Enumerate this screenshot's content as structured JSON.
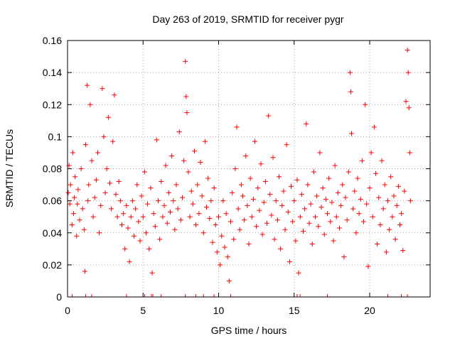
{
  "chart_data": {
    "type": "scatter",
    "title": "Day 263 of 2019, SRMTID for receiver pygr",
    "xlabel": "GPS time / hours",
    "ylabel": "SRMTID / TECUs",
    "xlim": [
      0,
      24
    ],
    "ylim": [
      0,
      0.16
    ],
    "xticks": [
      0,
      5,
      10,
      15,
      20
    ],
    "xtick_labels": [
      "0",
      "5",
      "10",
      "15",
      "20"
    ],
    "yticks": [
      0,
      0.02,
      0.04,
      0.06,
      0.08,
      0.1,
      0.12,
      0.14,
      0.16
    ],
    "ytick_labels": [
      "0",
      "0.02",
      "0.04",
      "0.06",
      "0.08",
      "0.1",
      "0.12",
      "0.14",
      "0.16"
    ],
    "grid": true,
    "marker": "plus",
    "color": "#ff0000",
    "series": [
      {
        "name": "SRMTID",
        "points": [
          [
            0.05,
            0.065
          ],
          [
            0.1,
            0.082
          ],
          [
            0.15,
            0.058
          ],
          [
            0.2,
            0.07
          ],
          [
            0.3,
            0.045
          ],
          [
            0.35,
            0.09
          ],
          [
            0.4,
            0.052
          ],
          [
            0.45,
            0.062
          ],
          [
            0.5,
            0.075
          ],
          [
            0.6,
            0.038
          ],
          [
            0.65,
            0.058
          ],
          [
            0.7,
            0.067
          ],
          [
            0.8,
            0.048
          ],
          [
            0.9,
            0.08
          ],
          [
            1.0,
            0.055
          ],
          [
            1.1,
            0.042
          ],
          [
            1.15,
            0.016
          ],
          [
            1.2,
            0.095
          ],
          [
            1.3,
            0.132
          ],
          [
            1.35,
            0.06
          ],
          [
            1.4,
            0.07
          ],
          [
            1.5,
            0.12
          ],
          [
            1.6,
            0.085
          ],
          [
            1.7,
            0.05
          ],
          [
            1.8,
            0.062
          ],
          [
            1.9,
            0.073
          ],
          [
            2.0,
            0.09
          ],
          [
            2.1,
            0.04
          ],
          [
            2.2,
            0.057
          ],
          [
            2.3,
            0.13
          ],
          [
            2.4,
            0.1
          ],
          [
            2.5,
            0.065
          ],
          [
            2.6,
            0.08
          ],
          [
            2.7,
            0.112
          ],
          [
            2.8,
            0.071
          ],
          [
            2.9,
            0.055
          ],
          [
            3.0,
            0.097
          ],
          [
            3.1,
            0.126
          ],
          [
            3.2,
            0.064
          ],
          [
            3.3,
            0.05
          ],
          [
            3.4,
            0.072
          ],
          [
            3.5,
            0.06
          ],
          [
            3.6,
            0.045
          ],
          [
            3.7,
            0.052
          ],
          [
            3.8,
            0.03
          ],
          [
            3.9,
            0.057
          ],
          [
            4.0,
            0.043
          ],
          [
            4.1,
            0.022
          ],
          [
            4.2,
            0.05
          ],
          [
            4.3,
            0.06
          ],
          [
            4.4,
            0.038
          ],
          [
            4.5,
            0.055
          ],
          [
            4.6,
            0.07
          ],
          [
            4.7,
            0.047
          ],
          [
            4.8,
            0.035
          ],
          [
            4.9,
            0.063
          ],
          [
            5.0,
            0.05
          ],
          [
            5.1,
            0.078
          ],
          [
            5.2,
            0.04
          ],
          [
            5.3,
            0.058
          ],
          [
            5.4,
            0.03
          ],
          [
            5.5,
            0.068
          ],
          [
            5.6,
            0.015
          ],
          [
            5.7,
            0.052
          ],
          [
            5.8,
            0.044
          ],
          [
            5.9,
            0.098
          ],
          [
            6.0,
            0.06
          ],
          [
            6.1,
            0.036
          ],
          [
            6.2,
            0.072
          ],
          [
            6.3,
            0.05
          ],
          [
            6.4,
            0.057
          ],
          [
            6.5,
            0.082
          ],
          [
            6.6,
            0.046
          ],
          [
            6.7,
            0.065
          ],
          [
            6.8,
            0.053
          ],
          [
            6.9,
            0.088
          ],
          [
            7.0,
            0.06
          ],
          [
            7.1,
            0.042
          ],
          [
            7.2,
            0.07
          ],
          [
            7.3,
            0.055
          ],
          [
            7.4,
            0.103
          ],
          [
            7.5,
            0.048
          ],
          [
            7.6,
            0.062
          ],
          [
            7.7,
            0.085
          ],
          [
            7.8,
            0.147
          ],
          [
            7.85,
            0.125
          ],
          [
            7.9,
            0.115
          ],
          [
            8.0,
            0.078
          ],
          [
            8.1,
            0.05
          ],
          [
            8.2,
            0.066
          ],
          [
            8.3,
            0.058
          ],
          [
            8.4,
            0.091
          ],
          [
            8.5,
            0.045
          ],
          [
            8.6,
            0.07
          ],
          [
            8.7,
            0.052
          ],
          [
            8.8,
            0.084
          ],
          [
            8.9,
            0.063
          ],
          [
            9.0,
            0.04
          ],
          [
            9.1,
            0.097
          ],
          [
            9.2,
            0.056
          ],
          [
            9.3,
            0.074
          ],
          [
            9.4,
            0.049
          ],
          [
            9.5,
            0.06
          ],
          [
            9.6,
            0.034
          ],
          [
            9.7,
            0.068
          ],
          [
            9.8,
            0.045
          ],
          [
            9.9,
            0.028
          ],
          [
            10.0,
            0.05
          ],
          [
            10.1,
            0.02
          ],
          [
            10.2,
            0.038
          ],
          [
            10.3,
            0.06
          ],
          [
            10.4,
            0.031
          ],
          [
            10.5,
            0.052
          ],
          [
            10.6,
            0.025
          ],
          [
            10.7,
            0.01
          ],
          [
            10.8,
            0.047
          ],
          [
            10.9,
            0.065
          ],
          [
            11.0,
            0.036
          ],
          [
            11.1,
            0.08
          ],
          [
            11.2,
            0.106
          ],
          [
            11.3,
            0.055
          ],
          [
            11.4,
            0.042
          ],
          [
            11.5,
            0.07
          ],
          [
            11.6,
            0.063
          ],
          [
            11.7,
            0.048
          ],
          [
            11.8,
            0.088
          ],
          [
            11.9,
            0.057
          ],
          [
            12.0,
            0.033
          ],
          [
            12.1,
            0.074
          ],
          [
            12.2,
            0.05
          ],
          [
            12.3,
            0.061
          ],
          [
            12.4,
            0.097
          ],
          [
            12.5,
            0.044
          ],
          [
            12.6,
            0.068
          ],
          [
            12.7,
            0.054
          ],
          [
            12.8,
            0.083
          ],
          [
            12.9,
            0.039
          ],
          [
            13.0,
            0.059
          ],
          [
            13.1,
            0.072
          ],
          [
            13.2,
            0.046
          ],
          [
            13.3,
            0.113
          ],
          [
            13.4,
            0.064
          ],
          [
            13.5,
            0.051
          ],
          [
            13.6,
            0.087
          ],
          [
            13.7,
            0.036
          ],
          [
            13.8,
            0.06
          ],
          [
            13.9,
            0.048
          ],
          [
            14.0,
            0.075
          ],
          [
            14.1,
            0.03
          ],
          [
            14.2,
            0.057
          ],
          [
            14.3,
            0.066
          ],
          [
            14.4,
            0.042
          ],
          [
            14.5,
            0.095
          ],
          [
            14.6,
            0.053
          ],
          [
            14.7,
            0.022
          ],
          [
            14.8,
            0.069
          ],
          [
            14.9,
            0.047
          ],
          [
            15.0,
            0.06
          ],
          [
            15.1,
            0.035
          ],
          [
            15.2,
            0.073
          ],
          [
            15.3,
            0.015
          ],
          [
            15.4,
            0.05
          ],
          [
            15.5,
            0.064
          ],
          [
            15.6,
            0.041
          ],
          [
            15.7,
            0.055
          ],
          [
            15.8,
            0.108
          ],
          [
            15.9,
            0.07
          ],
          [
            16.0,
            0.046
          ],
          [
            16.1,
            0.058
          ],
          [
            16.2,
            0.033
          ],
          [
            16.3,
            0.078
          ],
          [
            16.4,
            0.05
          ],
          [
            16.5,
            0.063
          ],
          [
            16.6,
            0.044
          ],
          [
            16.7,
            0.09
          ],
          [
            16.8,
            0.056
          ],
          [
            16.9,
            0.068
          ],
          [
            17.0,
            0.039
          ],
          [
            17.1,
            0.061
          ],
          [
            17.2,
            0.052
          ],
          [
            17.3,
            0.074
          ],
          [
            17.4,
            0.047
          ],
          [
            17.5,
            0.059
          ],
          [
            17.6,
            0.035
          ],
          [
            17.7,
            0.082
          ],
          [
            17.8,
            0.05
          ],
          [
            17.9,
            0.065
          ],
          [
            18.0,
            0.043
          ],
          [
            18.1,
            0.057
          ],
          [
            18.2,
            0.07
          ],
          [
            18.3,
            0.025
          ],
          [
            18.4,
            0.062
          ],
          [
            18.5,
            0.048
          ],
          [
            18.6,
            0.078
          ],
          [
            18.7,
            0.14
          ],
          [
            18.75,
            0.128
          ],
          [
            18.8,
            0.102
          ],
          [
            18.9,
            0.055
          ],
          [
            19.0,
            0.066
          ],
          [
            19.1,
            0.04
          ],
          [
            19.2,
            0.074
          ],
          [
            19.3,
            0.052
          ],
          [
            19.4,
            0.061
          ],
          [
            19.5,
            0.085
          ],
          [
            19.6,
            0.047
          ],
          [
            19.7,
            0.12
          ],
          [
            19.8,
            0.058
          ],
          [
            19.9,
            0.019
          ],
          [
            20.0,
            0.068
          ],
          [
            20.1,
            0.09
          ],
          [
            20.2,
            0.05
          ],
          [
            20.3,
            0.106
          ],
          [
            20.4,
            0.077
          ],
          [
            20.5,
            0.033
          ],
          [
            20.6,
            0.062
          ],
          [
            20.7,
            0.045
          ],
          [
            20.8,
            0.085
          ],
          [
            20.9,
            0.055
          ],
          [
            21.0,
            0.07
          ],
          [
            21.1,
            0.028
          ],
          [
            21.2,
            0.06
          ],
          [
            21.3,
            0.042
          ],
          [
            21.4,
            0.075
          ],
          [
            21.5,
            0.05
          ],
          [
            21.6,
            0.063
          ],
          [
            21.7,
            0.036
          ],
          [
            21.8,
            0.057
          ],
          [
            21.9,
            0.069
          ],
          [
            22.0,
            0.045
          ],
          [
            22.1,
            0.052
          ],
          [
            22.2,
            0.029
          ],
          [
            22.3,
            0.066
          ],
          [
            22.4,
            0.122
          ],
          [
            22.5,
            0.154
          ],
          [
            22.55,
            0.14
          ],
          [
            22.6,
            0.118
          ],
          [
            22.65,
            0.09
          ],
          [
            22.7,
            0.06
          ]
        ],
        "zero_ticks_x": [
          0.3,
          1.2,
          1.6,
          3.9,
          5.1,
          5.55,
          5.65,
          6.2,
          7.8,
          8.5,
          9.0,
          9.7,
          10.8,
          15.2,
          15.4,
          17.2,
          20.0,
          21.2,
          22.1,
          22.5
        ]
      }
    ]
  }
}
